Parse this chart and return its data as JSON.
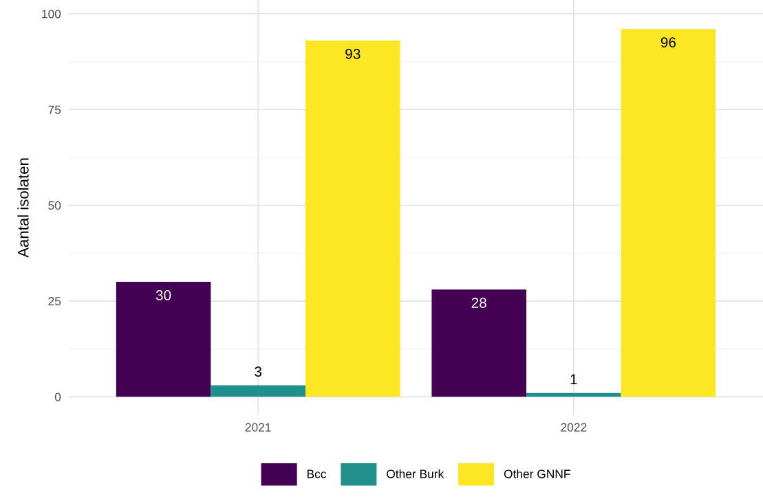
{
  "chart_data": {
    "type": "bar",
    "ylabel": "Aantal isolaten",
    "categories": [
      "2021",
      "2022"
    ],
    "series": [
      {
        "name": "Bcc",
        "color": "#440154",
        "values": [
          30,
          28
        ]
      },
      {
        "name": "Other Burk",
        "color": "#21908c",
        "values": [
          3,
          1
        ]
      },
      {
        "name": "Other GNNF",
        "color": "#fde725",
        "values": [
          93,
          96
        ]
      }
    ],
    "ylim": [
      -4.8,
      103.6
    ],
    "yticks": [
      0,
      25,
      50,
      75,
      100
    ],
    "grid": true,
    "legend": "bottom",
    "data_labels": true
  }
}
